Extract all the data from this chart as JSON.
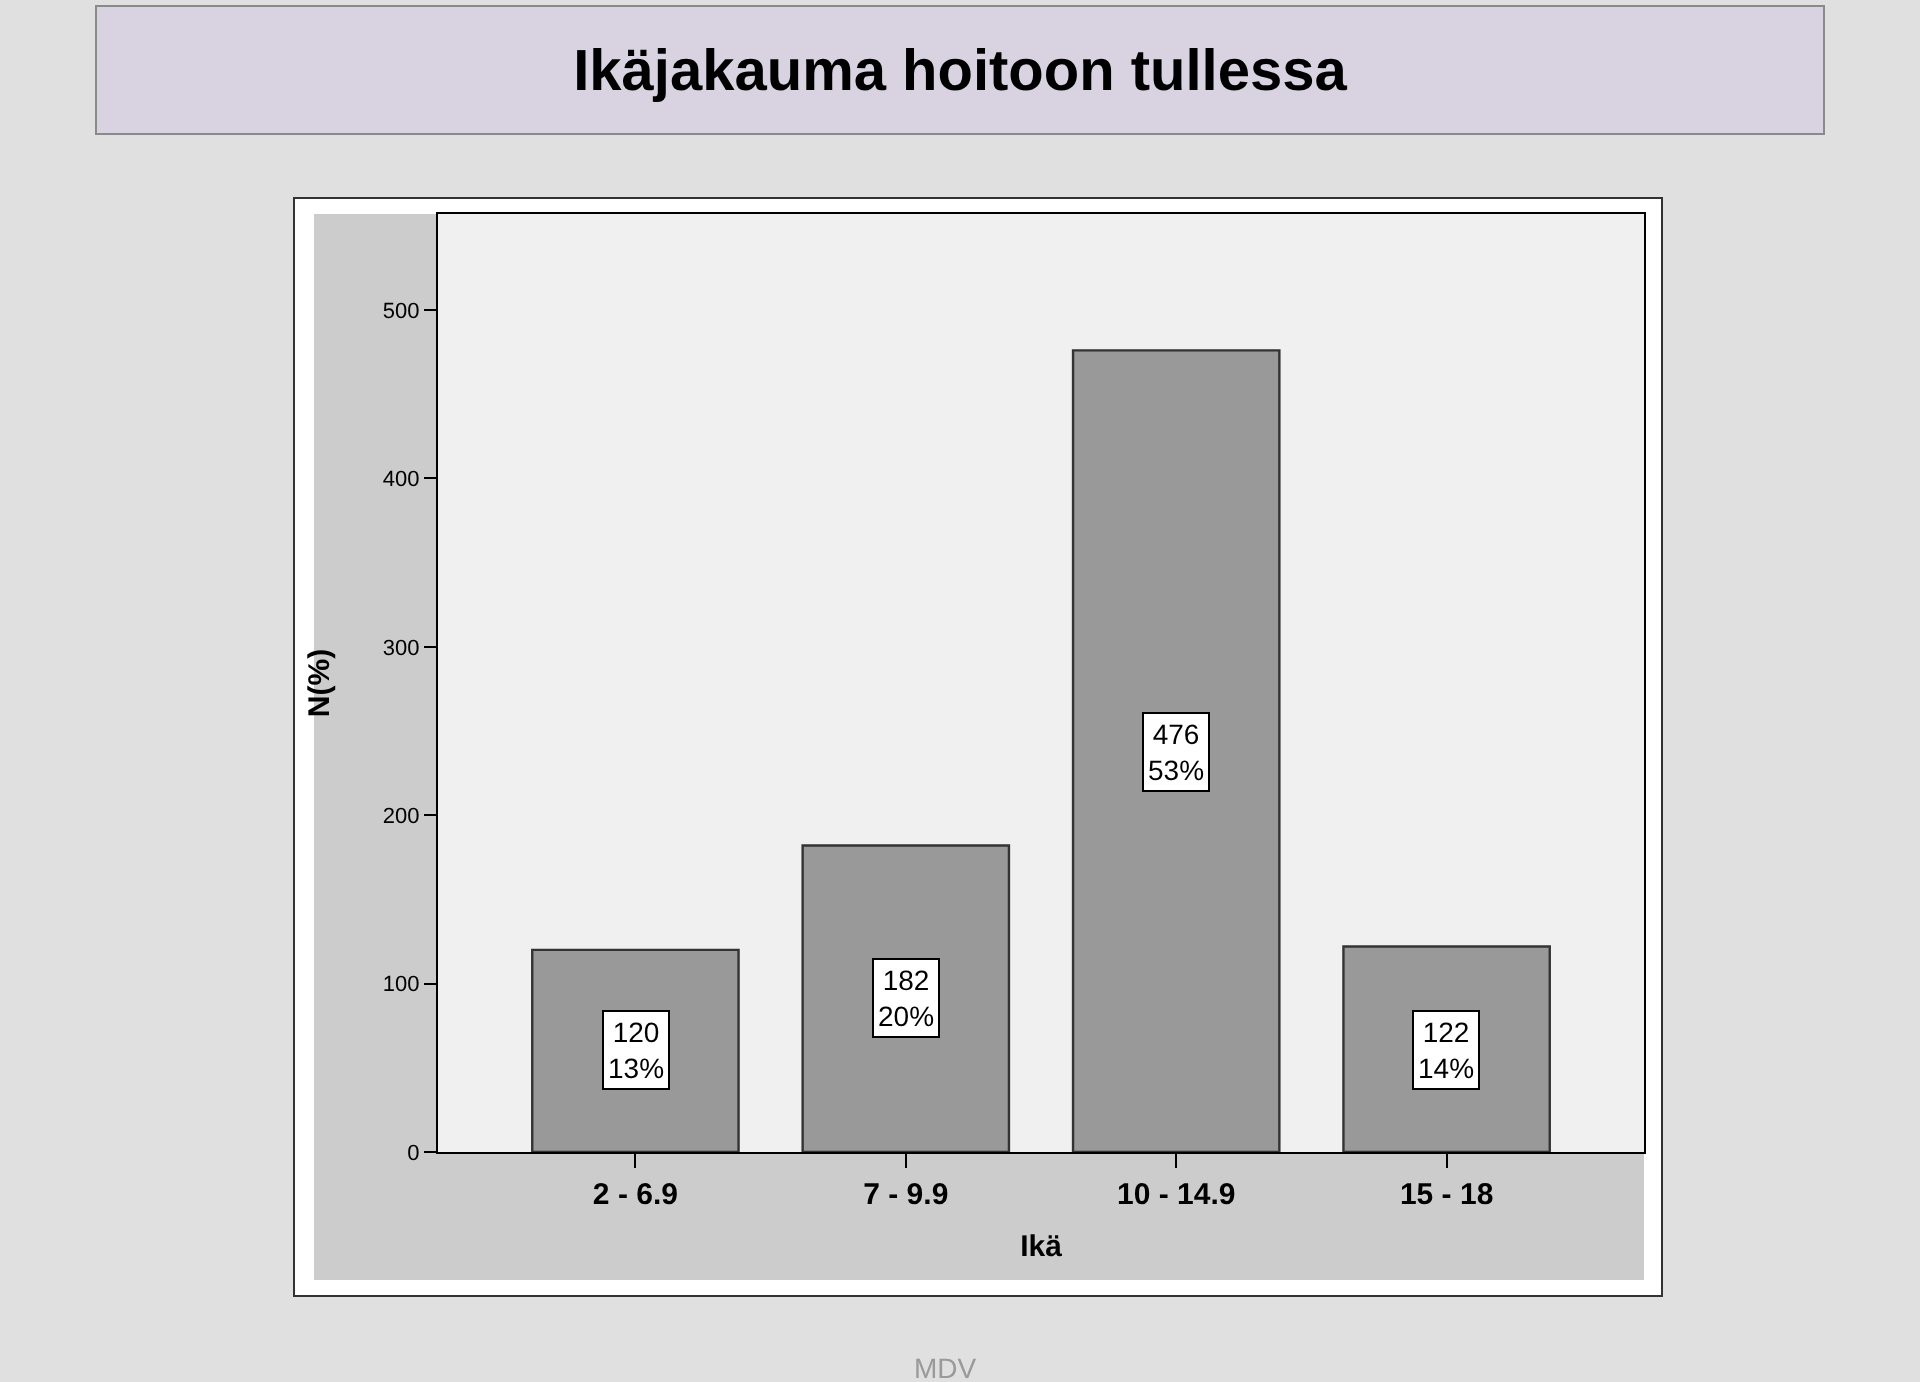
{
  "chart_data": {
    "type": "bar",
    "title": "Ikäjakauma hoitoon tullessa",
    "xlabel": "Ikä",
    "ylabel": "N(%)",
    "categories": [
      "2 - 6.9",
      "7 - 9.9",
      "10 - 14.9",
      "15 - 18"
    ],
    "values": [
      120,
      182,
      476,
      122
    ],
    "value_labels": [
      "120\n13%",
      "182\n20%",
      "476\n53%",
      "122\n14%"
    ],
    "color": "#999999",
    "ylim": [
      0,
      557
    ],
    "yticks": [
      0,
      100,
      200,
      300,
      400,
      500
    ],
    "annotations": [
      "MDV"
    ]
  }
}
